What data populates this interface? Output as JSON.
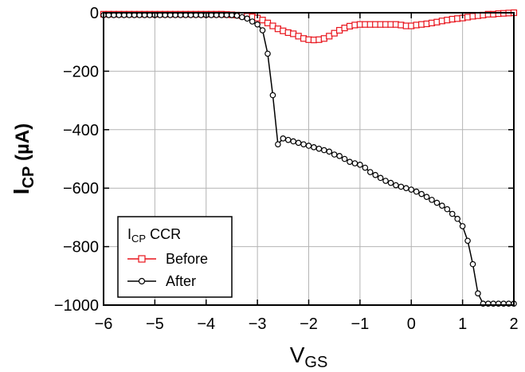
{
  "chart_data": {
    "type": "line",
    "title": "",
    "xlabel": {
      "main": "V",
      "sub": "GS"
    },
    "ylabel": {
      "main": "I",
      "sub": "CP",
      "unit": " (µA)"
    },
    "xlim": [
      -6,
      2
    ],
    "ylim": [
      -1000,
      0
    ],
    "xticks": [
      -6,
      -5,
      -4,
      -3,
      -2,
      -1,
      0,
      1,
      2
    ],
    "yticks": [
      0,
      -200,
      -400,
      -600,
      -800,
      -1000
    ],
    "xtick_labels": [
      "−6",
      "−5",
      "−4",
      "−3",
      "−2",
      "−1",
      "0",
      "1",
      "2"
    ],
    "ytick_labels": [
      "0",
      "−200",
      "−400",
      "−600",
      "−800",
      "−1000"
    ],
    "grid": true,
    "legend": {
      "placement": "bottom-left",
      "title_main": "I",
      "title_sub": "CP",
      "title_rest": " CCR"
    },
    "series": [
      {
        "name": "Before",
        "color": "#e8141c",
        "marker": "square",
        "x": [
          -6.0,
          -5.9,
          -5.8,
          -5.7,
          -5.6,
          -5.5,
          -5.4,
          -5.3,
          -5.2,
          -5.1,
          -5.0,
          -4.9,
          -4.8,
          -4.7,
          -4.6,
          -4.5,
          -4.4,
          -4.3,
          -4.2,
          -4.1,
          -4.0,
          -3.9,
          -3.8,
          -3.7,
          -3.6,
          -3.5,
          -3.4,
          -3.3,
          -3.2,
          -3.1,
          -3.0,
          -2.9,
          -2.8,
          -2.7,
          -2.6,
          -2.5,
          -2.4,
          -2.3,
          -2.2,
          -2.1,
          -2.0,
          -1.9,
          -1.8,
          -1.7,
          -1.6,
          -1.5,
          -1.4,
          -1.3,
          -1.2,
          -1.1,
          -1.0,
          -0.9,
          -0.8,
          -0.7,
          -0.6,
          -0.5,
          -0.4,
          -0.3,
          -0.2,
          -0.1,
          0.0,
          0.1,
          0.2,
          0.3,
          0.4,
          0.5,
          0.6,
          0.7,
          0.8,
          0.9,
          1.0,
          1.1,
          1.2,
          1.3,
          1.4,
          1.5,
          1.6,
          1.7,
          1.8,
          1.9,
          2.0
        ],
        "y": [
          -5,
          -5,
          -5,
          -5,
          -5,
          -5,
          -5,
          -5,
          -5,
          -5,
          -5,
          -5,
          -5,
          -5,
          -5,
          -5,
          -5,
          -5,
          -5,
          -5,
          -5,
          -5,
          -5,
          -5,
          -6,
          -7,
          -8,
          -10,
          -12,
          -14,
          -18,
          -25,
          -35,
          -45,
          -55,
          -62,
          -68,
          -72,
          -80,
          -88,
          -92,
          -93,
          -92,
          -88,
          -80,
          -70,
          -60,
          -52,
          -46,
          -42,
          -40,
          -40,
          -40,
          -40,
          -40,
          -40,
          -40,
          -40,
          -42,
          -45,
          -45,
          -42,
          -40,
          -38,
          -35,
          -32,
          -28,
          -25,
          -22,
          -20,
          -18,
          -15,
          -12,
          -10,
          -8,
          -5,
          -5,
          -3,
          -2,
          -1,
          0
        ]
      },
      {
        "name": "After",
        "color": "#000000",
        "marker": "circle",
        "x": [
          -6.0,
          -5.9,
          -5.8,
          -5.7,
          -5.6,
          -5.5,
          -5.4,
          -5.3,
          -5.2,
          -5.1,
          -5.0,
          -4.9,
          -4.8,
          -4.7,
          -4.6,
          -4.5,
          -4.4,
          -4.3,
          -4.2,
          -4.1,
          -4.0,
          -3.9,
          -3.8,
          -3.7,
          -3.6,
          -3.5,
          -3.4,
          -3.3,
          -3.2,
          -3.1,
          -3.0,
          -2.9,
          -2.8,
          -2.7,
          -2.6,
          -2.5,
          -2.4,
          -2.3,
          -2.2,
          -2.1,
          -2.0,
          -1.9,
          -1.8,
          -1.7,
          -1.6,
          -1.5,
          -1.4,
          -1.3,
          -1.2,
          -1.1,
          -1.0,
          -0.9,
          -0.8,
          -0.7,
          -0.6,
          -0.5,
          -0.4,
          -0.3,
          -0.2,
          -0.1,
          0.0,
          0.1,
          0.2,
          0.3,
          0.4,
          0.5,
          0.6,
          0.7,
          0.8,
          0.9,
          1.0,
          1.1,
          1.2,
          1.3,
          1.4,
          1.5,
          1.6,
          1.7,
          1.8,
          1.9,
          2.0
        ],
        "y": [
          -8,
          -8,
          -8,
          -8,
          -8,
          -8,
          -8,
          -8,
          -8,
          -8,
          -8,
          -8,
          -8,
          -8,
          -8,
          -8,
          -8,
          -8,
          -8,
          -8,
          -8,
          -8,
          -8,
          -8,
          -8,
          -8,
          -10,
          -15,
          -20,
          -30,
          -40,
          -60,
          -140,
          -282,
          -450,
          -430,
          -435,
          -440,
          -445,
          -450,
          -455,
          -460,
          -465,
          -470,
          -475,
          -485,
          -490,
          -500,
          -510,
          -515,
          -520,
          -530,
          -545,
          -555,
          -565,
          -575,
          -582,
          -590,
          -595,
          -600,
          -605,
          -612,
          -620,
          -630,
          -640,
          -650,
          -660,
          -672,
          -688,
          -705,
          -730,
          -780,
          -860,
          -960,
          -995,
          -995,
          -995,
          -995,
          -995,
          -995,
          -995
        ]
      }
    ]
  }
}
